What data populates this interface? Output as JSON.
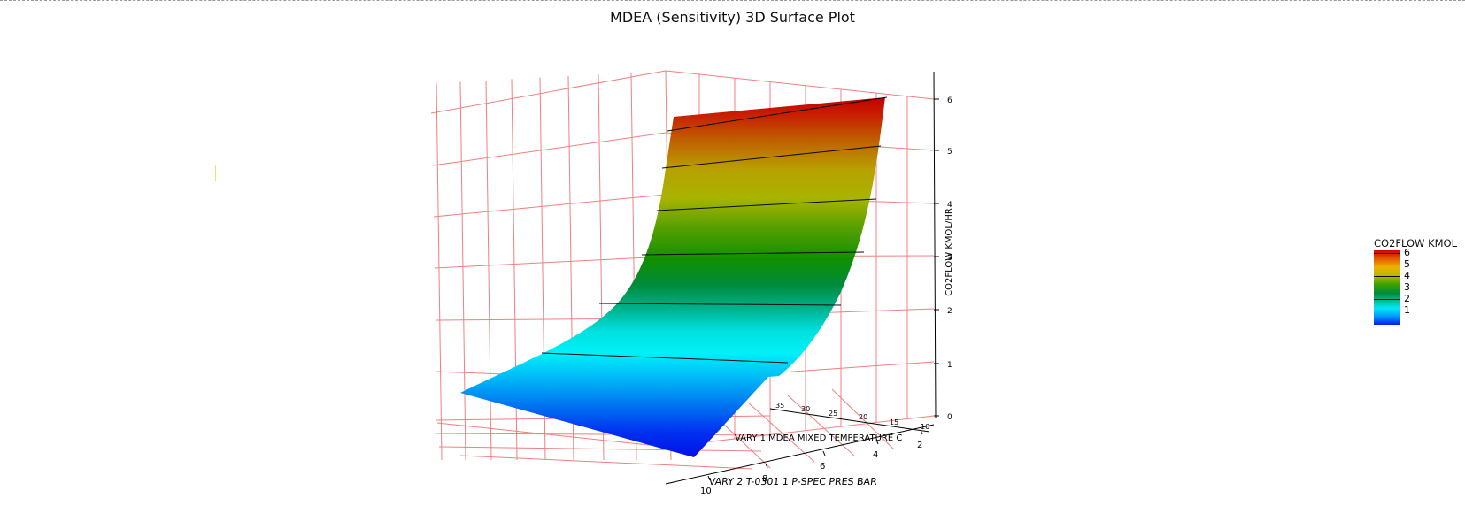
{
  "chart_data": {
    "type": "surface3d",
    "title": "MDEA (Sensitivity) 3D Surface Plot",
    "zlabel": "CO2FLOW KMOL/HR",
    "xlabel": "VARY 2 T-0301 1 P-SPEC PRES BAR",
    "ylabel": "VARY 1 MDEA MIXED TEMPERATURE C",
    "x_ticks": [
      "10",
      "8",
      "6",
      "4",
      "2"
    ],
    "y_ticks": [
      "35",
      "30",
      "25",
      "20",
      "15",
      "10"
    ],
    "z_ticks": [
      "0",
      "1",
      "2",
      "3",
      "4",
      "5",
      "6"
    ],
    "zlim": [
      0,
      6
    ],
    "contour_levels": [
      1,
      2,
      3,
      4,
      5,
      6
    ],
    "surface_edge_profile": [
      {
        "pres": 10,
        "co2flow": 0.1
      },
      {
        "pres": 8,
        "co2flow": 0.55
      },
      {
        "pres": 6,
        "co2flow": 1.4
      },
      {
        "pres": 4,
        "co2flow": 2.8
      },
      {
        "pres": 3,
        "co2flow": 3.8
      },
      {
        "pres": 2,
        "co2flow": 5.7
      }
    ],
    "legend": {
      "title": "CO2FLOW KMOL",
      "placement": "right",
      "levels": [
        "6",
        "5",
        "4",
        "3",
        "2",
        "1"
      ],
      "colors": [
        "#d40000",
        "#f0b000",
        "#3aa000",
        "#008a3a",
        "#00e8f8",
        "#0020f0"
      ]
    },
    "grid": true,
    "grid_color": "#f08080"
  }
}
